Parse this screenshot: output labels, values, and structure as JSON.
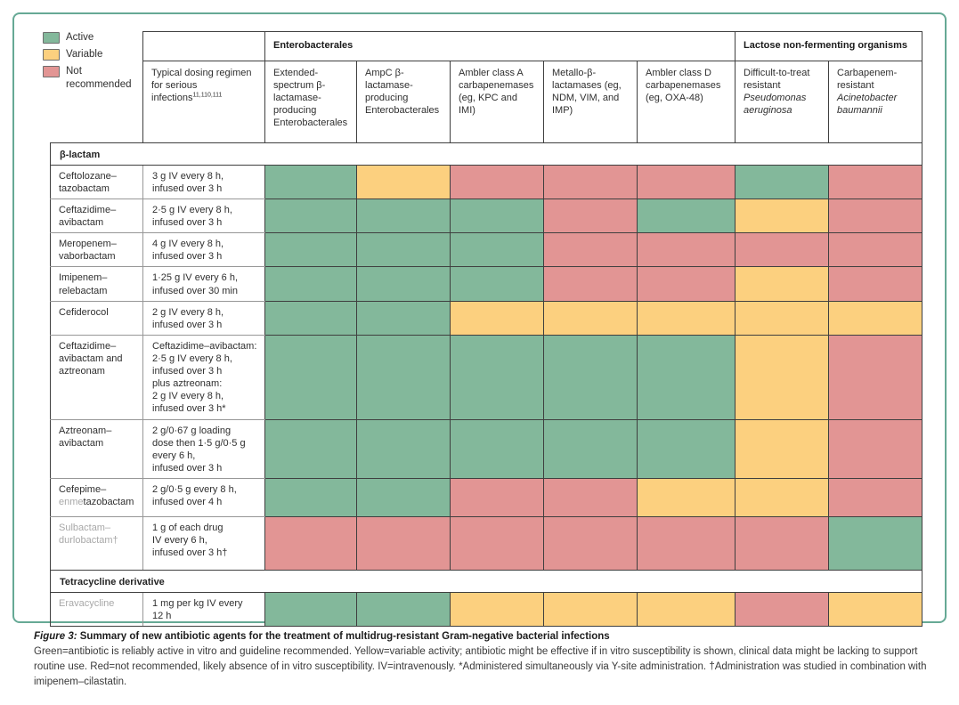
{
  "status_colors": {
    "active": "#83b89b",
    "variable": "#fcd07f",
    "not_recommended": "#e29594"
  },
  "frame_color": "#66a995",
  "legend": {
    "items": [
      {
        "key": "active",
        "label": "Active"
      },
      {
        "key": "variable",
        "label": "Variable"
      },
      {
        "key": "not_recommended",
        "label": "Not recommended"
      }
    ]
  },
  "header": {
    "dosing": {
      "text": "Typical dosing regimen for serious infections",
      "superscript": "11,110,111"
    },
    "groups": [
      {
        "key": "enterobacterales",
        "label": "Enterobacterales",
        "span": 5
      },
      {
        "key": "lactose-non-fermenting",
        "label": "Lactose non-fermenting organisms",
        "span": 2
      }
    ],
    "columns": [
      {
        "key": "esbl-enterobacterales",
        "plain": "Extended-spectrum β-lactamase-producing Enterobacterales",
        "italic": ""
      },
      {
        "key": "ampc-enterobacterales",
        "plain": "AmpC β-lactamase-producing Enterobacterales",
        "italic": ""
      },
      {
        "key": "ambler-class-a",
        "plain": "Ambler class A carbapenemases (eg, KPC and IMI)",
        "italic": ""
      },
      {
        "key": "metallo-beta-lactamases",
        "plain": "Metallo-β-lactamases (eg, NDM, VIM, and IMP)",
        "italic": ""
      },
      {
        "key": "ambler-class-d",
        "plain": "Ambler class D carbapenemases (eg, OXA-48)",
        "italic": ""
      },
      {
        "key": "dtr-pseudomonas",
        "plain": "Difficult-to-treat resistant ",
        "italic": "Pseudomonas aeruginosa"
      },
      {
        "key": "cr-acinetobacter",
        "plain": "Carbapenem-resistant ",
        "italic": "Acinetobacter baumannii"
      }
    ]
  },
  "rows": [
    {
      "type": "section",
      "key": "beta-lactam",
      "label": "β-lactam",
      "height": 25
    },
    {
      "type": "drug",
      "key": "ceftolozane-tazobactam",
      "name": [
        {
          "text": "Ceftolozane–tazobactam",
          "gray": false
        }
      ],
      "dosing": [
        "3 g IV every 8 h,",
        "infused over 3 h"
      ],
      "status": [
        "active",
        "variable",
        "not_recommended",
        "not_recommended",
        "not_recommended",
        "active",
        "not_recommended"
      ],
      "height": 35
    },
    {
      "type": "drug",
      "key": "ceftazidime-avibactam",
      "name": [
        {
          "text": "Ceftazidime–avibactam",
          "gray": false
        }
      ],
      "dosing": [
        "2·5 g IV every 8 h,",
        "infused over 3 h"
      ],
      "status": [
        "active",
        "active",
        "active",
        "not_recommended",
        "active",
        "variable",
        "not_recommended"
      ],
      "height": 35
    },
    {
      "type": "drug",
      "key": "meropenem-vaborbactam",
      "name": [
        {
          "text": "Meropenem–vaborbactam",
          "gray": false
        }
      ],
      "dosing": [
        "4 g IV every 8 h,",
        "infused over 3 h"
      ],
      "status": [
        "active",
        "active",
        "active",
        "not_recommended",
        "not_recommended",
        "not_recommended",
        "not_recommended"
      ],
      "height": 35
    },
    {
      "type": "drug",
      "key": "imipenem-relebactam",
      "name": [
        {
          "text": "Imipenem–relebactam",
          "gray": false
        }
      ],
      "dosing": [
        "1·25 g IV every 6 h,",
        "infused over 30 min"
      ],
      "status": [
        "active",
        "active",
        "active",
        "not_recommended",
        "not_recommended",
        "variable",
        "not_recommended"
      ],
      "height": 35
    },
    {
      "type": "drug",
      "key": "cefiderocol",
      "name": [
        {
          "text": "Cefiderocol",
          "gray": false
        }
      ],
      "dosing": [
        "2 g IV every 8 h,",
        "infused over 3 h"
      ],
      "status": [
        "active",
        "active",
        "variable",
        "variable",
        "variable",
        "variable",
        "variable"
      ],
      "height": 35
    },
    {
      "type": "drug",
      "key": "ceftazidime-avibactam-and-aztreonam",
      "name": [
        {
          "text": "Ceftazidime–avibactam and aztreonam",
          "gray": false
        }
      ],
      "dosing": [
        "Ceftazidime–avibactam:",
        "2·5 g IV every 8 h,",
        "infused over 3 h",
        "plus aztreonam:",
        "2 g IV every 8 h,",
        "infused over 3 h*"
      ],
      "status": [
        "active",
        "active",
        "active",
        "active",
        "active",
        "variable",
        "not_recommended"
      ],
      "height": 95
    },
    {
      "type": "drug",
      "key": "aztreonam-avibactam",
      "name": [
        {
          "text": "Aztreonam–avibactam",
          "gray": false
        }
      ],
      "dosing": [
        "2 g/0·67 g loading",
        "dose then 1·5 g/0·5 g",
        "every 6 h,",
        "infused over 3 h"
      ],
      "status": [
        "active",
        "active",
        "active",
        "active",
        "active",
        "variable",
        "not_recommended"
      ],
      "height": 65
    },
    {
      "type": "drug",
      "key": "cefepime-enmetazobactam",
      "name": [
        {
          "text": "Cefepime–",
          "gray": false
        },
        {
          "text": "enme",
          "gray": true
        },
        {
          "text": "tazobactam",
          "gray": false
        }
      ],
      "dosing": [
        "2 g/0·5 g every 8 h,",
        "infused over 4 h"
      ],
      "status": [
        "active",
        "active",
        "not_recommended",
        "not_recommended",
        "variable",
        "variable",
        "not_recommended"
      ],
      "height": 43
    },
    {
      "type": "drug",
      "key": "sulbactam-durlobactam",
      "name": [
        {
          "text": "Sulbactam–durlobactam†",
          "gray": true
        }
      ],
      "dosing": [
        "1 g of each drug",
        "IV every 6 h,",
        "infused over 3 h†"
      ],
      "status": [
        "not_recommended",
        "not_recommended",
        "not_recommended",
        "not_recommended",
        "not_recommended",
        "not_recommended",
        "active"
      ],
      "height": 60
    },
    {
      "type": "section",
      "key": "tetracycline-derivative",
      "label": "Tetracycline derivative",
      "height": 25
    },
    {
      "type": "drug",
      "key": "eravacycline",
      "name": [
        {
          "text": "Eravacycline",
          "gray": true
        }
      ],
      "dosing": [
        "1 mg per kg IV every",
        "12 h"
      ],
      "status": [
        "active",
        "active",
        "variable",
        "variable",
        "variable",
        "not_recommended",
        "variable"
      ],
      "height": 38
    }
  ],
  "caption": {
    "figure_label": "Figure 3:",
    "title": "Summary of new antibiotic agents for the treatment of multidrug-resistant Gram-negative bacterial infections",
    "body": "Green=antibiotic is reliably active in vitro and guideline recommended. Yellow=variable activity; antibiotic might be effective if in vitro susceptibility is shown, clinical data might be lacking to support routine use. Red=not recommended, likely absence of in vitro susceptibility. IV=intravenously. *Administered simultaneously via Y-site administration. †Administration was studied in combination with imipenem–cilastatin."
  }
}
